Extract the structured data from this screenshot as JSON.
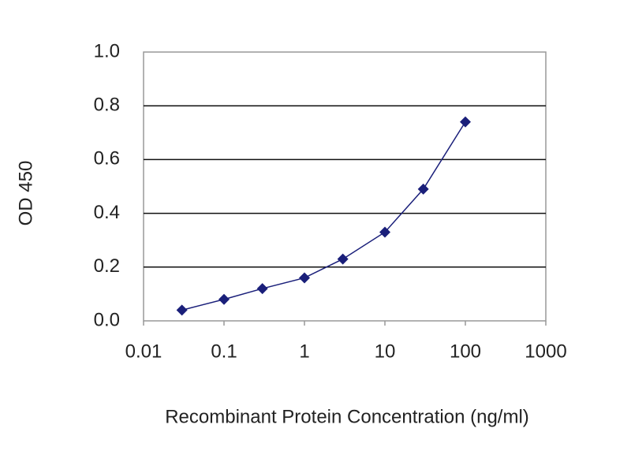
{
  "chart_data": {
    "type": "line",
    "x_label": "Recombinant Protein Concentration (ng/ml)",
    "y_label": "OD 450",
    "x": [
      0.03,
      0.1,
      0.3,
      1,
      3,
      10,
      30,
      100
    ],
    "values": [
      0.04,
      0.08,
      0.12,
      0.16,
      0.23,
      0.33,
      0.49,
      0.74
    ],
    "color": "#1a1f7a",
    "xscale": "log",
    "xlim": [
      0.01,
      1000
    ],
    "xticks": [
      0.01,
      0.1,
      1,
      10,
      100,
      1000
    ],
    "ylim": [
      0,
      1
    ],
    "yticks": [
      {
        "value": 0,
        "label": "0.0"
      },
      0.2,
      0.4,
      0.6,
      0.8,
      {
        "value": 1,
        "label": "1.0"
      }
    ],
    "grid": true
  }
}
